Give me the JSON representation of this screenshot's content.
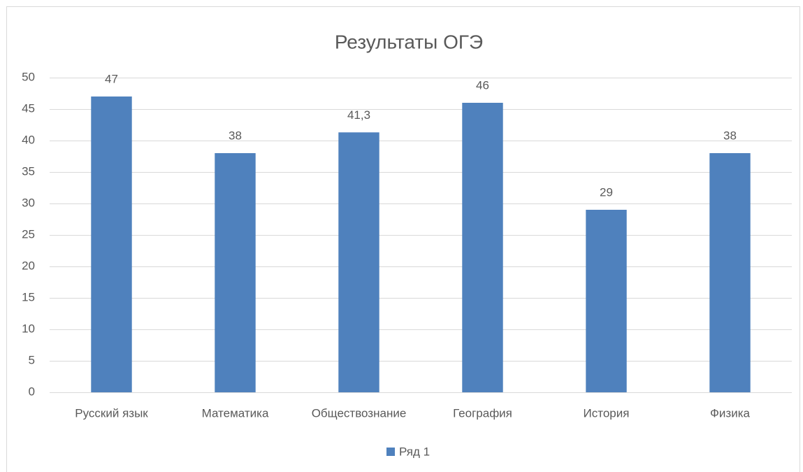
{
  "chart_data": {
    "type": "bar",
    "title": "Результаты ОГЭ",
    "categories": [
      "Русский язык",
      "Математика",
      "Обществознание",
      "География",
      "История",
      "Физика"
    ],
    "series": [
      {
        "name": "Ряд 1",
        "color": "#4f81bd",
        "values": [
          47,
          38,
          41.3,
          46,
          29,
          38
        ],
        "value_labels": [
          "47",
          "38",
          "41,3",
          "46",
          "29",
          "38"
        ]
      }
    ],
    "ylim": [
      0,
      50
    ],
    "yticks": [
      0,
      5,
      10,
      15,
      20,
      25,
      30,
      35,
      40,
      45,
      50
    ],
    "grid": true,
    "legend": "bottom"
  }
}
